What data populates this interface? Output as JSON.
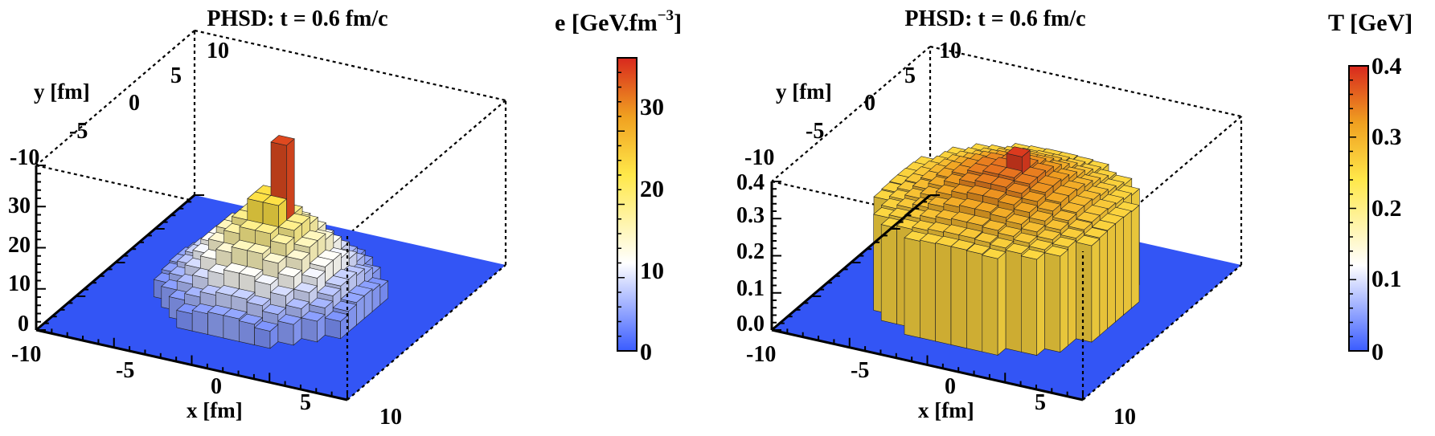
{
  "chart_data": [
    {
      "type": "3d-bar",
      "title": "PHSD: t = 0.6 fm/c",
      "xlabel": "x [fm]",
      "ylabel": "y [fm]",
      "zlabel": "",
      "x_ticks": [
        "-10",
        "-5",
        "0",
        "5",
        "10"
      ],
      "y_ticks": [
        "-10",
        "-5",
        "0",
        "5",
        "10"
      ],
      "z_ticks": [
        "0",
        "10",
        "20",
        "30"
      ],
      "xlim": [
        -10,
        10
      ],
      "ylim": [
        -10,
        10
      ],
      "zlim": [
        0,
        36
      ],
      "colorbar": {
        "title": "e [GeV.fm",
        "title_sup": "−3",
        "title_end": "]",
        "ticks": [
          "0",
          "10",
          "20",
          "30"
        ],
        "range": [
          0,
          36
        ],
        "colors": [
          "#3a5cff",
          "#ffffff",
          "#ffe84a",
          "#f0a020",
          "#d8281e"
        ]
      },
      "peak_value": 34,
      "distribution": "sharp central peak over a broad base"
    },
    {
      "type": "3d-bar",
      "title": "PHSD: t = 0.6 fm/c",
      "xlabel": "x [fm]",
      "ylabel": "y [fm]",
      "zlabel": "",
      "x_ticks": [
        "-10",
        "-5",
        "0",
        "5",
        "10"
      ],
      "y_ticks": [
        "-10",
        "-5",
        "0",
        "5",
        "10"
      ],
      "z_ticks": [
        "0.0",
        "0.1",
        "0.2",
        "0.3",
        "0.4"
      ],
      "xlim": [
        -10,
        10
      ],
      "ylim": [
        -10,
        10
      ],
      "zlim": [
        0,
        0.4
      ],
      "colorbar": {
        "title": "T [GeV]",
        "title_sup": "",
        "title_end": "",
        "ticks": [
          "0",
          "0.1",
          "0.2",
          "0.3",
          "0.4"
        ],
        "range": [
          0,
          0.4
        ],
        "colors": [
          "#3a5cff",
          "#ffffff",
          "#ffe84a",
          "#f0a020",
          "#d8281e"
        ]
      },
      "peak_value": 0.4,
      "distribution": "broad plateau"
    }
  ]
}
